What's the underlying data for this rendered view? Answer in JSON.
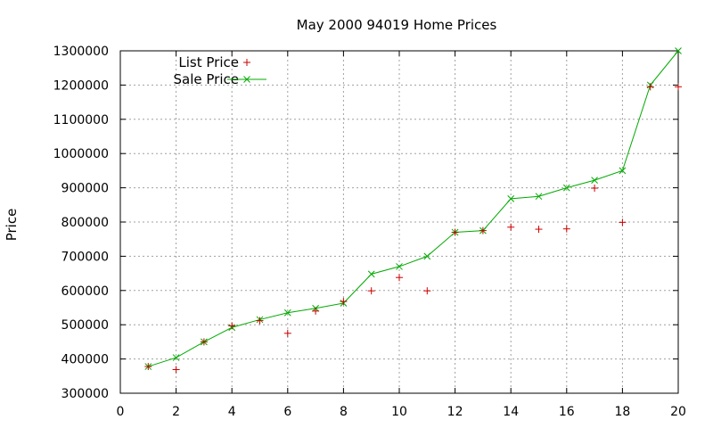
{
  "chart_data": {
    "type": "line",
    "title": "May 2000 94019 Home Prices",
    "xlabel": "",
    "ylabel": "Price",
    "xlim": [
      0,
      20
    ],
    "ylim": [
      300000,
      1300000
    ],
    "x_ticks": [
      0,
      2,
      4,
      6,
      8,
      10,
      12,
      14,
      16,
      18,
      20
    ],
    "y_ticks": [
      300000,
      400000,
      500000,
      600000,
      700000,
      800000,
      900000,
      1000000,
      1100000,
      1200000,
      1300000
    ],
    "grid": true,
    "legend_position": "top-left",
    "x": [
      1,
      2,
      3,
      4,
      5,
      6,
      7,
      8,
      9,
      10,
      11,
      12,
      13,
      14,
      15,
      16,
      17,
      18,
      19,
      20
    ],
    "series": [
      {
        "name": "List Price",
        "style": "points-plus",
        "color": "#cc0000",
        "values": [
          378000,
          369000,
          450000,
          497000,
          512000,
          475000,
          540000,
          568000,
          599000,
          638000,
          599000,
          770000,
          775000,
          785000,
          779000,
          780000,
          899000,
          799000,
          1195000,
          1195000
        ]
      },
      {
        "name": "Sale Price",
        "style": "linespoints-x",
        "color": "#00aa00",
        "values": [
          378000,
          404000,
          450000,
          492000,
          515000,
          535000,
          548000,
          563000,
          648000,
          670000,
          700000,
          770000,
          775000,
          868000,
          875000,
          900000,
          922000,
          950000,
          1200000,
          1300000
        ]
      }
    ]
  }
}
